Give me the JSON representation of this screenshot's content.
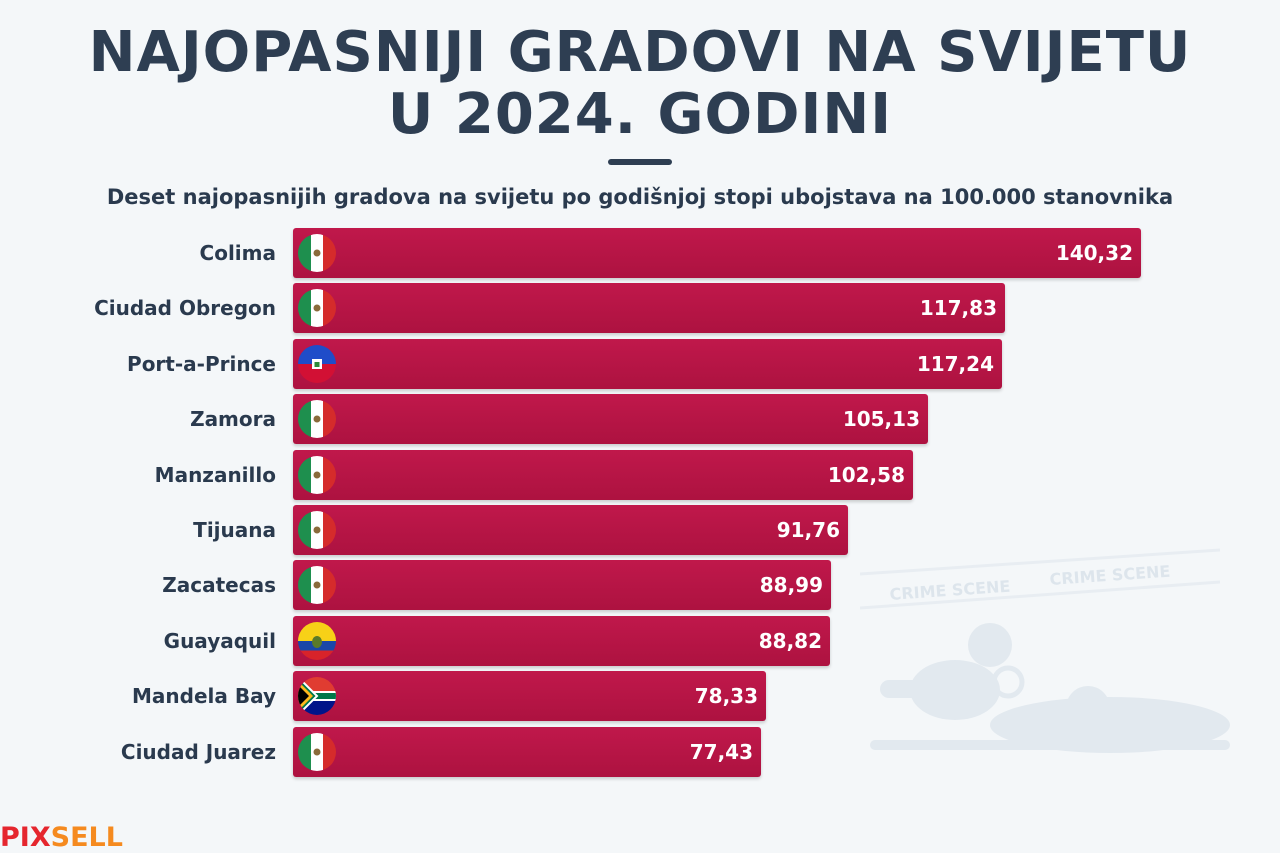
{
  "chart_data": {
    "type": "bar",
    "orientation": "horizontal",
    "title_lines": [
      "NAJOPASNIJI GRADOVI NA SVIJETU",
      "U 2024. GODINI"
    ],
    "subtitle": "Deset najopasnijih gradova na svijetu po godišnjoj stopi ubojstava na 100.000 stanovnika",
    "categories": [
      "Colima",
      "Ciudad Obregon",
      "Port-a-Prince",
      "Zamora",
      "Manzanillo",
      "Tijuana",
      "Zacatecas",
      "Guayaquil",
      "Mandela Bay",
      "Ciudad Juarez"
    ],
    "values": [
      140.32,
      117.83,
      117.24,
      105.13,
      102.58,
      91.76,
      88.99,
      88.82,
      78.33,
      77.43
    ],
    "value_labels": [
      "140,32",
      "117,83",
      "117,24",
      "105,13",
      "102,58",
      "91,76",
      "88,99",
      "88,82",
      "78,33",
      "77,43"
    ],
    "flags": [
      "mexico-flag",
      "mexico-flag",
      "haiti-flag",
      "mexico-flag",
      "mexico-flag",
      "mexico-flag",
      "mexico-flag",
      "ecuador-flag",
      "south-africa-flag",
      "mexico-flag"
    ],
    "xlim": [
      0,
      140.32
    ],
    "bar_color": "#c0184b",
    "grid": false,
    "legend": "none"
  },
  "watermark": {
    "tape_text": [
      "CRIME SCENE",
      "CRIME SCENE"
    ]
  },
  "logo": {
    "part1": "PIX",
    "part2": "SELL"
  },
  "colors": {
    "accent": "#c0184b",
    "title": "#2e3e52",
    "logo_red": "#e5262e",
    "logo_orange": "#f58a1f"
  }
}
